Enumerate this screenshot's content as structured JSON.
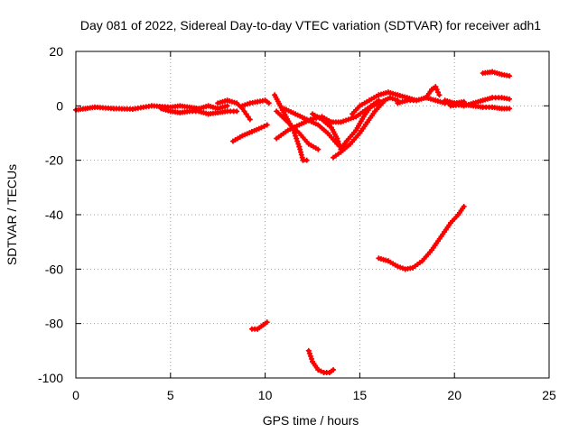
{
  "chart_data": {
    "type": "scatter",
    "title": "Day 081 of 2022, Sidereal Day-to-day VTEC variation (SDTVAR) for receiver adh1",
    "xlabel": "GPS time / hours",
    "ylabel": "SDTVAR / TECUs",
    "xlim": [
      0,
      25
    ],
    "ylim": [
      -100,
      20
    ],
    "xticks": [
      0,
      5,
      10,
      15,
      20,
      25
    ],
    "yticks": [
      -100,
      -80,
      -60,
      -40,
      -20,
      0,
      20
    ],
    "grid": true,
    "marker_color": "#ff0000",
    "series": [
      {
        "name": "arc-baseline",
        "points": [
          [
            0,
            -1.5
          ],
          [
            0.5,
            -1
          ],
          [
            1,
            -0.5
          ],
          [
            2,
            -1
          ],
          [
            3,
            -1.2
          ],
          [
            4,
            0
          ],
          [
            5,
            -0.5
          ],
          [
            5.5,
            0
          ],
          [
            6,
            -0.5
          ],
          [
            6.5,
            -1
          ],
          [
            7,
            0
          ],
          [
            7.5,
            -1
          ],
          [
            8,
            0
          ]
        ]
      },
      {
        "name": "arc-early-band",
        "points": [
          [
            4.5,
            -1
          ],
          [
            5,
            -2
          ],
          [
            5.5,
            -2.5
          ],
          [
            6,
            -2
          ],
          [
            6.5,
            -2
          ],
          [
            7,
            -3
          ],
          [
            7.5,
            -2.5
          ],
          [
            8,
            -2
          ],
          [
            8.5,
            -2
          ]
        ]
      },
      {
        "name": "arc-loop-8",
        "points": [
          [
            7.5,
            1
          ],
          [
            8,
            2
          ],
          [
            8.5,
            1
          ],
          [
            8.8,
            -1
          ],
          [
            9,
            -3
          ],
          [
            9.2,
            -5
          ]
        ]
      },
      {
        "name": "arc-rise-9",
        "points": [
          [
            8.3,
            -13
          ],
          [
            8.8,
            -11
          ],
          [
            9.3,
            -9.5
          ],
          [
            9.8,
            -8
          ],
          [
            10.1,
            -7
          ]
        ]
      },
      {
        "name": "arc-short-9b",
        "points": [
          [
            8.8,
            0
          ],
          [
            9.2,
            1
          ],
          [
            9.6,
            1.5
          ],
          [
            10,
            2
          ],
          [
            10.2,
            1
          ]
        ]
      },
      {
        "name": "arc-dip-11",
        "points": [
          [
            10.5,
            4
          ],
          [
            10.8,
            0
          ],
          [
            11.1,
            -4
          ],
          [
            11.5,
            -9
          ],
          [
            11.8,
            -15
          ],
          [
            12,
            -20
          ],
          [
            12.2,
            -20
          ]
        ]
      },
      {
        "name": "arc-fall-11b",
        "points": [
          [
            10.6,
            -2
          ],
          [
            11.2,
            -6
          ],
          [
            11.8,
            -10
          ],
          [
            12.3,
            -14
          ],
          [
            12.8,
            -16
          ]
        ]
      },
      {
        "name": "arc-rise-11c",
        "points": [
          [
            10.6,
            -12
          ],
          [
            11.2,
            -9
          ],
          [
            11.8,
            -7
          ],
          [
            12.4,
            -5
          ],
          [
            13,
            -4
          ],
          [
            13.5,
            -6
          ]
        ]
      },
      {
        "name": "arc-cross-12",
        "points": [
          [
            11,
            -1
          ],
          [
            11.6,
            -3
          ],
          [
            12.2,
            -5
          ],
          [
            12.8,
            -7
          ],
          [
            13.3,
            -10
          ],
          [
            13.8,
            -14
          ]
        ]
      },
      {
        "name": "arc-v-14",
        "points": [
          [
            12.5,
            -3
          ],
          [
            13,
            -5
          ],
          [
            13.5,
            -8
          ],
          [
            13.8,
            -12
          ],
          [
            14,
            -16
          ],
          [
            14.3,
            -13
          ],
          [
            14.8,
            -9
          ],
          [
            15.2,
            -4
          ],
          [
            15.6,
            0
          ],
          [
            16,
            2
          ]
        ]
      },
      {
        "name": "arc-rise-14b",
        "points": [
          [
            13.6,
            -19
          ],
          [
            14,
            -17
          ],
          [
            14.5,
            -14
          ],
          [
            15,
            -10
          ],
          [
            15.4,
            -6
          ],
          [
            15.8,
            -2
          ],
          [
            16.2,
            1
          ]
        ]
      },
      {
        "name": "arc-rise-14c",
        "points": [
          [
            13.2,
            -6
          ],
          [
            14,
            -6
          ],
          [
            14.8,
            -4
          ],
          [
            15.4,
            -1
          ],
          [
            16,
            1
          ],
          [
            16.6,
            3
          ],
          [
            17,
            2
          ]
        ]
      },
      {
        "name": "arc-hump-16",
        "points": [
          [
            14.6,
            -3
          ],
          [
            15,
            0
          ],
          [
            15.5,
            2
          ],
          [
            16,
            4
          ],
          [
            16.5,
            5
          ],
          [
            17,
            4
          ],
          [
            17.5,
            3
          ],
          [
            18,
            2
          ]
        ]
      },
      {
        "name": "arc-mid-18",
        "points": [
          [
            17,
            1
          ],
          [
            17.5,
            2
          ],
          [
            18,
            2
          ],
          [
            18.5,
            3
          ],
          [
            19,
            2
          ],
          [
            19.5,
            1
          ],
          [
            20,
            1
          ],
          [
            20.5,
            1.5
          ]
        ]
      },
      {
        "name": "arc-peak-19",
        "points": [
          [
            18.5,
            3
          ],
          [
            18.8,
            6
          ],
          [
            19,
            7
          ],
          [
            19.2,
            4
          ]
        ]
      },
      {
        "name": "arc-tail-20",
        "points": [
          [
            19.5,
            2
          ],
          [
            20,
            1
          ],
          [
            20.5,
            0
          ],
          [
            21,
            1
          ],
          [
            21.5,
            2
          ],
          [
            22,
            3
          ],
          [
            22.5,
            3
          ],
          [
            22.9,
            2.5
          ]
        ]
      },
      {
        "name": "arc-tail-20b",
        "points": [
          [
            19.8,
            0
          ],
          [
            20.5,
            0.5
          ],
          [
            21,
            0
          ],
          [
            21.5,
            -0.5
          ],
          [
            22,
            -0.5
          ],
          [
            22.5,
            -1
          ],
          [
            22.9,
            -1
          ]
        ]
      },
      {
        "name": "arc-high-22",
        "points": [
          [
            21.5,
            12
          ],
          [
            22,
            12.5
          ],
          [
            22.5,
            11.5
          ],
          [
            22.9,
            11
          ]
        ]
      },
      {
        "name": "arc-neg60",
        "points": [
          [
            16,
            -56
          ],
          [
            16.5,
            -57
          ],
          [
            17,
            -59
          ],
          [
            17.4,
            -60
          ],
          [
            17.8,
            -59.5
          ],
          [
            18.3,
            -57
          ],
          [
            18.8,
            -53
          ],
          [
            19.3,
            -48
          ],
          [
            19.8,
            -43
          ],
          [
            20.2,
            -40
          ],
          [
            20.5,
            -37
          ]
        ]
      },
      {
        "name": "arc-neg80",
        "points": [
          [
            9.3,
            -82
          ],
          [
            9.6,
            -82
          ],
          [
            9.9,
            -80.5
          ],
          [
            10.1,
            -79.5
          ]
        ]
      },
      {
        "name": "arc-neg100",
        "points": [
          [
            12.3,
            -90
          ],
          [
            12.5,
            -94
          ],
          [
            12.8,
            -97
          ],
          [
            13.1,
            -98
          ],
          [
            13.4,
            -98
          ],
          [
            13.6,
            -97
          ]
        ]
      }
    ]
  }
}
